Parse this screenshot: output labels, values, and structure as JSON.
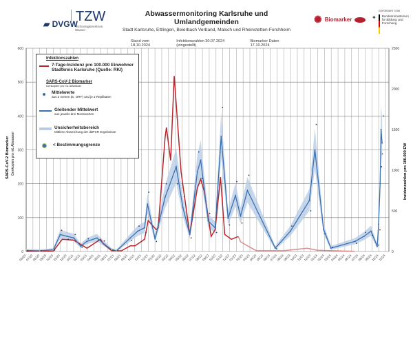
{
  "header": {
    "title": "Abwassermonitoring  Karlsruhe  und  Umlandgemeinden",
    "subtitle": "Stadt Karlsruhe, Ettlingen, Beierbach Verband, Malsch und Rheinstetten-Forchheim",
    "stand": "Stand vom 18.10.2024",
    "infektion": "Infektionszahlen 30.07.2024   (eingestellt)",
    "biomarker": "Biomarker Daten 17.10.2024"
  },
  "logos": {
    "dvgw": "DVGW",
    "tzw": "TZW",
    "tzw_sub": "Technologiezentrum Wasser",
    "biomarker": "Biomarker",
    "bmbf_top": "GEFÖRDERT VOM",
    "bmbf": "Bundesministerium für Bildung und Forschung"
  },
  "legend": {
    "h1": "Infektionszahlen",
    "red_label": "7-Tage-Inzidenz pro 100.000  Einwohner",
    "red_label2": "Stadtkreis Karlsruhe  (Quelle: RKI)",
    "h2": "SARS-CoV-2 Biomarker",
    "h2_sub": "Genkopien pro mL Abwasser",
    "mean": "Mittelwerte",
    "mean_sub": "aus 2 Genen (E, ORF) und je 2 Replikaten",
    "ma": "Gleitender Mittelwert",
    "ma_sub": "aus jeweils drei Messwerten",
    "unc": "Unsicherheitsbereich",
    "unc_sub": "Mittlere Abweichung der ddPCR Ergebnisse",
    "lod": "< Bestimmungsgrenze"
  },
  "colors": {
    "blue": "#3a6fb0",
    "red": "#b5262b",
    "red_faded": "#d98a8c",
    "band": "#b9cde6",
    "lod": "#9cc05a"
  },
  "chart_data": {
    "type": "line",
    "ylabel_left": "SARS-CoV-2 Biomarker",
    "ylabel_left_sub": "Genkopien pro mL Abwasser",
    "ylabel_right": "Inzidenzzahlen pro 100.000 EW",
    "ylim_left": [
      0,
      600
    ],
    "ylim_right": [
      0,
      2500
    ],
    "yticks_left": [
      0,
      100,
      200,
      300,
      400,
      500,
      600
    ],
    "yticks_right": [
      0,
      500,
      1000,
      1500,
      2000,
      2500
    ],
    "xlim": [
      "2020-06-01",
      "2024-11-01"
    ],
    "xticks": [
      "06/20",
      "07/20",
      "08/20",
      "09/20",
      "10/20",
      "11/20",
      "12/20",
      "01/21",
      "02/21",
      "03/21",
      "04/21",
      "05/21",
      "06/21",
      "07/21",
      "08/21",
      "09/21",
      "10/21",
      "11/21",
      "12/21",
      "01/22",
      "02/22",
      "03/22",
      "04/22",
      "05/22",
      "06/22",
      "07/22",
      "08/22",
      "09/22",
      "10/22",
      "11/22",
      "12/22",
      "01/23",
      "02/23",
      "03/23",
      "04/23",
      "05/23",
      "06/23",
      "07/23",
      "08/23",
      "09/23",
      "10/23",
      "11/23",
      "12/23",
      "01/24",
      "02/24",
      "03/24",
      "04/24",
      "05/24",
      "06/24",
      "07/24",
      "08/24",
      "09/24",
      "10/24",
      "11/24"
    ],
    "grid": true,
    "legend_position": "top-left",
    "series": [
      {
        "name": "Gleitender Mittelwert",
        "axis": "left",
        "points": [
          [
            "2020-06-01",
            3
          ],
          [
            "2020-08-01",
            2
          ],
          [
            "2020-10-01",
            5
          ],
          [
            "2020-11-01",
            50
          ],
          [
            "2020-12-01",
            45
          ],
          [
            "2021-01-01",
            40
          ],
          [
            "2021-02-01",
            16
          ],
          [
            "2021-03-01",
            30
          ],
          [
            "2021-04-15",
            40
          ],
          [
            "2021-05-12",
            25
          ],
          [
            "2021-06-20",
            5
          ],
          [
            "2021-07-12",
            2
          ],
          [
            "2021-09-12",
            40
          ],
          [
            "2021-10-15",
            60
          ],
          [
            "2021-11-15",
            70
          ],
          [
            "2021-11-28",
            140
          ],
          [
            "2022-01-01",
            37
          ],
          [
            "2022-02-15",
            160
          ],
          [
            "2022-04-06",
            250
          ],
          [
            "2022-05-06",
            130
          ],
          [
            "2022-06-06",
            50
          ],
          [
            "2022-07-10",
            235
          ],
          [
            "2022-07-25",
            270
          ],
          [
            "2022-08-28",
            90
          ],
          [
            "2022-09-28",
            70
          ],
          [
            "2022-10-25",
            340
          ],
          [
            "2022-11-25",
            98
          ],
          [
            "2022-12-28",
            165
          ],
          [
            "2023-01-20",
            105
          ],
          [
            "2023-02-20",
            180
          ],
          [
            "2023-06-25",
            10
          ],
          [
            "2023-09-01",
            60
          ],
          [
            "2023-11-25",
            150
          ],
          [
            "2023-12-20",
            300
          ],
          [
            "2024-01-28",
            65
          ],
          [
            "2024-03-01",
            10
          ],
          [
            "2024-06-18",
            30
          ],
          [
            "2024-07-28",
            45
          ],
          [
            "2024-08-28",
            60
          ],
          [
            "2024-09-25",
            15
          ],
          [
            "2024-10-01",
            80
          ],
          [
            "2024-10-08",
            200
          ],
          [
            "2024-10-12",
            360
          ],
          [
            "2024-10-17",
            320
          ]
        ]
      },
      {
        "name": "7-Tage-Inzidenz pro 100.000  Einwohner",
        "axis": "right",
        "faded_from": "2023-01-10",
        "points": [
          [
            "2020-06-01",
            2
          ],
          [
            "2020-10-01",
            5
          ],
          [
            "2020-11-10",
            150
          ],
          [
            "2021-01-01",
            140
          ],
          [
            "2021-03-01",
            40
          ],
          [
            "2021-05-01",
            150
          ],
          [
            "2021-05-12",
            100
          ],
          [
            "2021-06-20",
            10
          ],
          [
            "2021-08-03",
            8
          ],
          [
            "2021-09-12",
            70
          ],
          [
            "2021-10-03",
            70
          ],
          [
            "2021-11-15",
            150
          ],
          [
            "2021-12-01",
            380
          ],
          [
            "2022-01-06",
            270
          ],
          [
            "2022-01-15",
            290
          ],
          [
            "2022-02-15",
            1400
          ],
          [
            "2022-02-21",
            1525
          ],
          [
            "2022-03-12",
            1120
          ],
          [
            "2022-03-28",
            2160
          ],
          [
            "2022-04-28",
            975
          ],
          [
            "2022-06-06",
            210
          ],
          [
            "2022-07-10",
            780
          ],
          [
            "2022-07-25",
            890
          ],
          [
            "2022-08-10",
            740
          ],
          [
            "2022-09-10",
            185
          ],
          [
            "2022-09-28",
            270
          ],
          [
            "2022-10-22",
            915
          ],
          [
            "2022-11-10",
            210
          ],
          [
            "2022-12-10",
            150
          ],
          [
            "2023-01-10",
            185
          ],
          [
            "2023-01-20",
            120
          ],
          [
            "2023-02-20",
            70
          ],
          [
            "2023-04-01",
            10
          ],
          [
            "2023-08-01",
            10
          ],
          [
            "2023-11-15",
            40
          ],
          [
            "2024-01-01",
            15
          ],
          [
            "2024-05-01",
            5
          ],
          [
            "2024-06-15",
            3
          ]
        ]
      }
    ]
  }
}
